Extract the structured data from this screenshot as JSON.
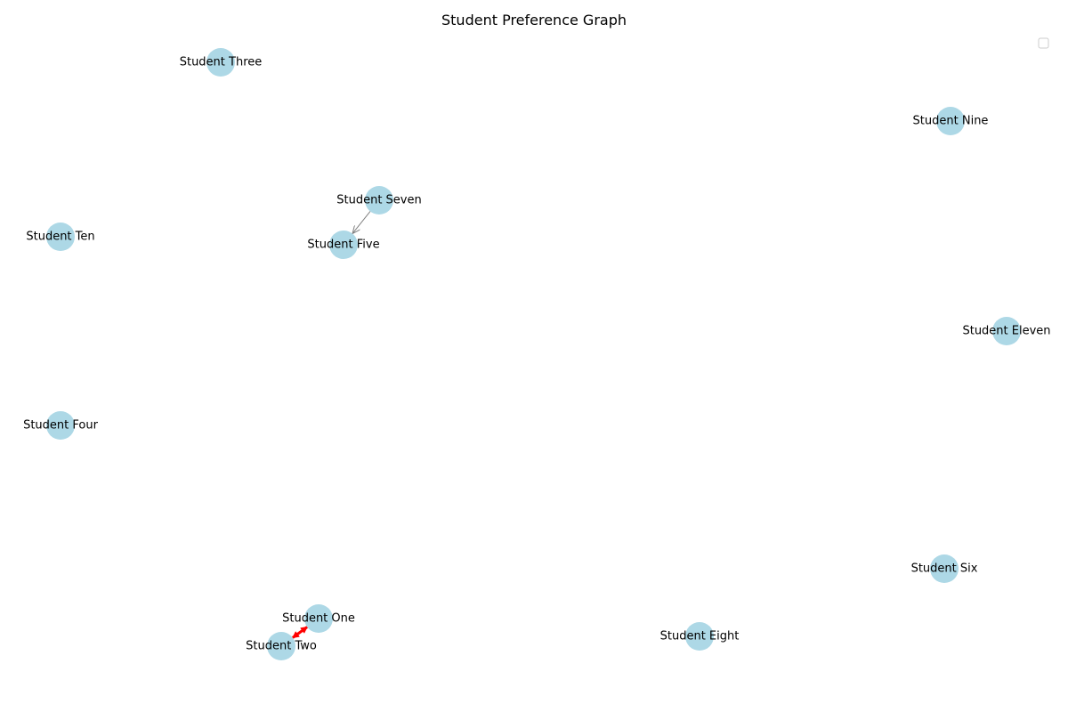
{
  "title": "Student Preference Graph",
  "colors": {
    "node_fill": "#add8e6",
    "normal_edge": "#808080",
    "mutual_edge": "#ff0000",
    "legend_border": "#cccccc"
  },
  "nodes": [
    {
      "id": "s3",
      "label": "Student Three"
    },
    {
      "id": "s9",
      "label": "Student Nine"
    },
    {
      "id": "s7",
      "label": "Student Seven"
    },
    {
      "id": "s10",
      "label": "Student Ten"
    },
    {
      "id": "s5",
      "label": "Student Five"
    },
    {
      "id": "s11",
      "label": "Student Eleven"
    },
    {
      "id": "s4",
      "label": "Student Four"
    },
    {
      "id": "s6",
      "label": "Student Six"
    },
    {
      "id": "s1",
      "label": "Student One"
    },
    {
      "id": "s8",
      "label": "Student Eight"
    },
    {
      "id": "s2",
      "label": "Student Two"
    }
  ],
  "edges": [
    {
      "from": "s7",
      "to": "s5",
      "type": "normal"
    },
    {
      "from": "s1",
      "to": "s2",
      "type": "mutual"
    }
  ]
}
